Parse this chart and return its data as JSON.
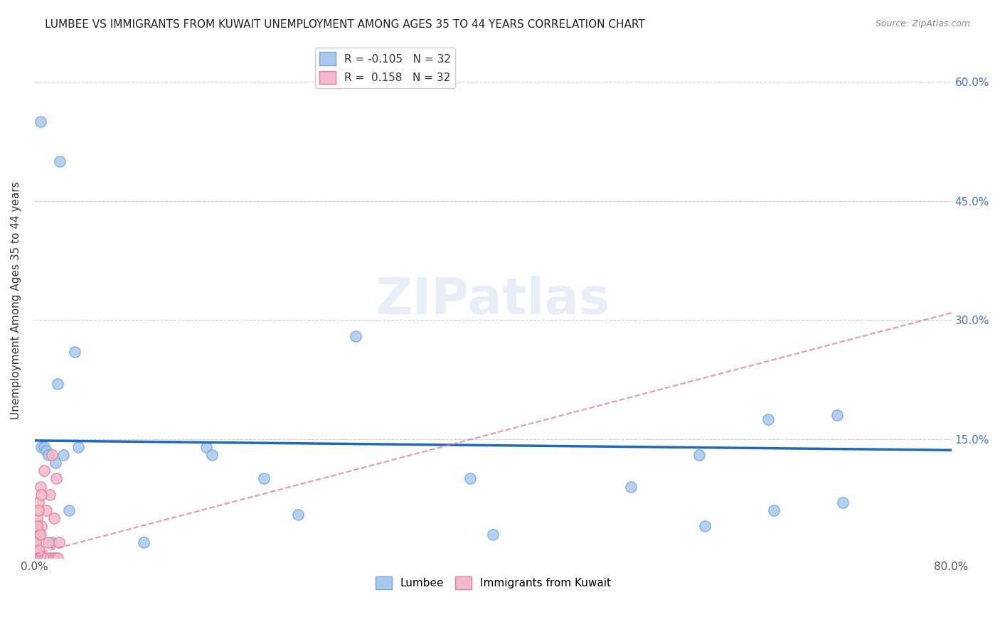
{
  "title": "LUMBEE VS IMMIGRANTS FROM KUWAIT UNEMPLOYMENT AMONG AGES 35 TO 44 YEARS CORRELATION CHART",
  "source": "Source: ZipAtlas.com",
  "ylabel": "Unemployment Among Ages 35 to 44 years",
  "xlim": [
    0.0,
    0.8
  ],
  "ylim": [
    0.0,
    0.65
  ],
  "lumbee_color": "#a8c8f0",
  "kuwait_color": "#f4b8c8",
  "lumbee_edge": "#6aaad4",
  "kuwait_edge": "#e87a9a",
  "trend_lumbee_color": "#1a6abf",
  "trend_kuwait_color": "#e87a9a",
  "legend_lumbee_R": "-0.105",
  "legend_lumbee_N": "32",
  "legend_kuwait_R": "0.158",
  "legend_kuwait_N": "32",
  "lumbee_x": [
    0.001,
    0.002,
    0.003,
    0.004,
    0.006,
    0.008,
    0.01,
    0.012,
    0.015,
    0.018,
    0.02,
    0.025,
    0.03,
    0.035,
    0.038,
    0.095,
    0.15,
    0.155,
    0.2,
    0.23,
    0.28,
    0.38,
    0.4,
    0.52,
    0.58,
    0.585,
    0.64,
    0.645,
    0.7,
    0.705,
    0.005,
    0.022
  ],
  "lumbee_y": [
    0.025,
    0.04,
    0.035,
    0.03,
    0.14,
    0.14,
    0.135,
    0.13,
    0.02,
    0.12,
    0.22,
    0.13,
    0.06,
    0.26,
    0.14,
    0.02,
    0.14,
    0.13,
    0.1,
    0.055,
    0.28,
    0.1,
    0.03,
    0.09,
    0.13,
    0.04,
    0.175,
    0.06,
    0.18,
    0.07,
    0.55,
    0.5
  ],
  "kuwait_x": [
    0.001,
    0.001,
    0.002,
    0.002,
    0.003,
    0.003,
    0.004,
    0.004,
    0.005,
    0.005,
    0.006,
    0.007,
    0.008,
    0.009,
    0.01,
    0.011,
    0.012,
    0.013,
    0.014,
    0.015,
    0.016,
    0.017,
    0.018,
    0.019,
    0.001,
    0.002,
    0.003,
    0.004,
    0.005,
    0.006,
    0.02,
    0.021
  ],
  "kuwait_y": [
    0.0,
    0.02,
    0.0,
    0.05,
    0.01,
    0.07,
    0.0,
    0.03,
    0.09,
    0.0,
    0.04,
    0.0,
    0.11,
    0.0,
    0.06,
    0.0,
    0.02,
    0.08,
    0.0,
    0.13,
    0.0,
    0.05,
    0.0,
    0.1,
    0.02,
    0.04,
    0.06,
    0.01,
    0.03,
    0.08,
    0.0,
    0.02
  ],
  "marker_size": 120,
  "lumbee_trend_intercept": 0.148,
  "lumbee_trend_slope": -0.015,
  "kuwait_trend_intercept": 0.005,
  "kuwait_trend_slope": 0.38
}
